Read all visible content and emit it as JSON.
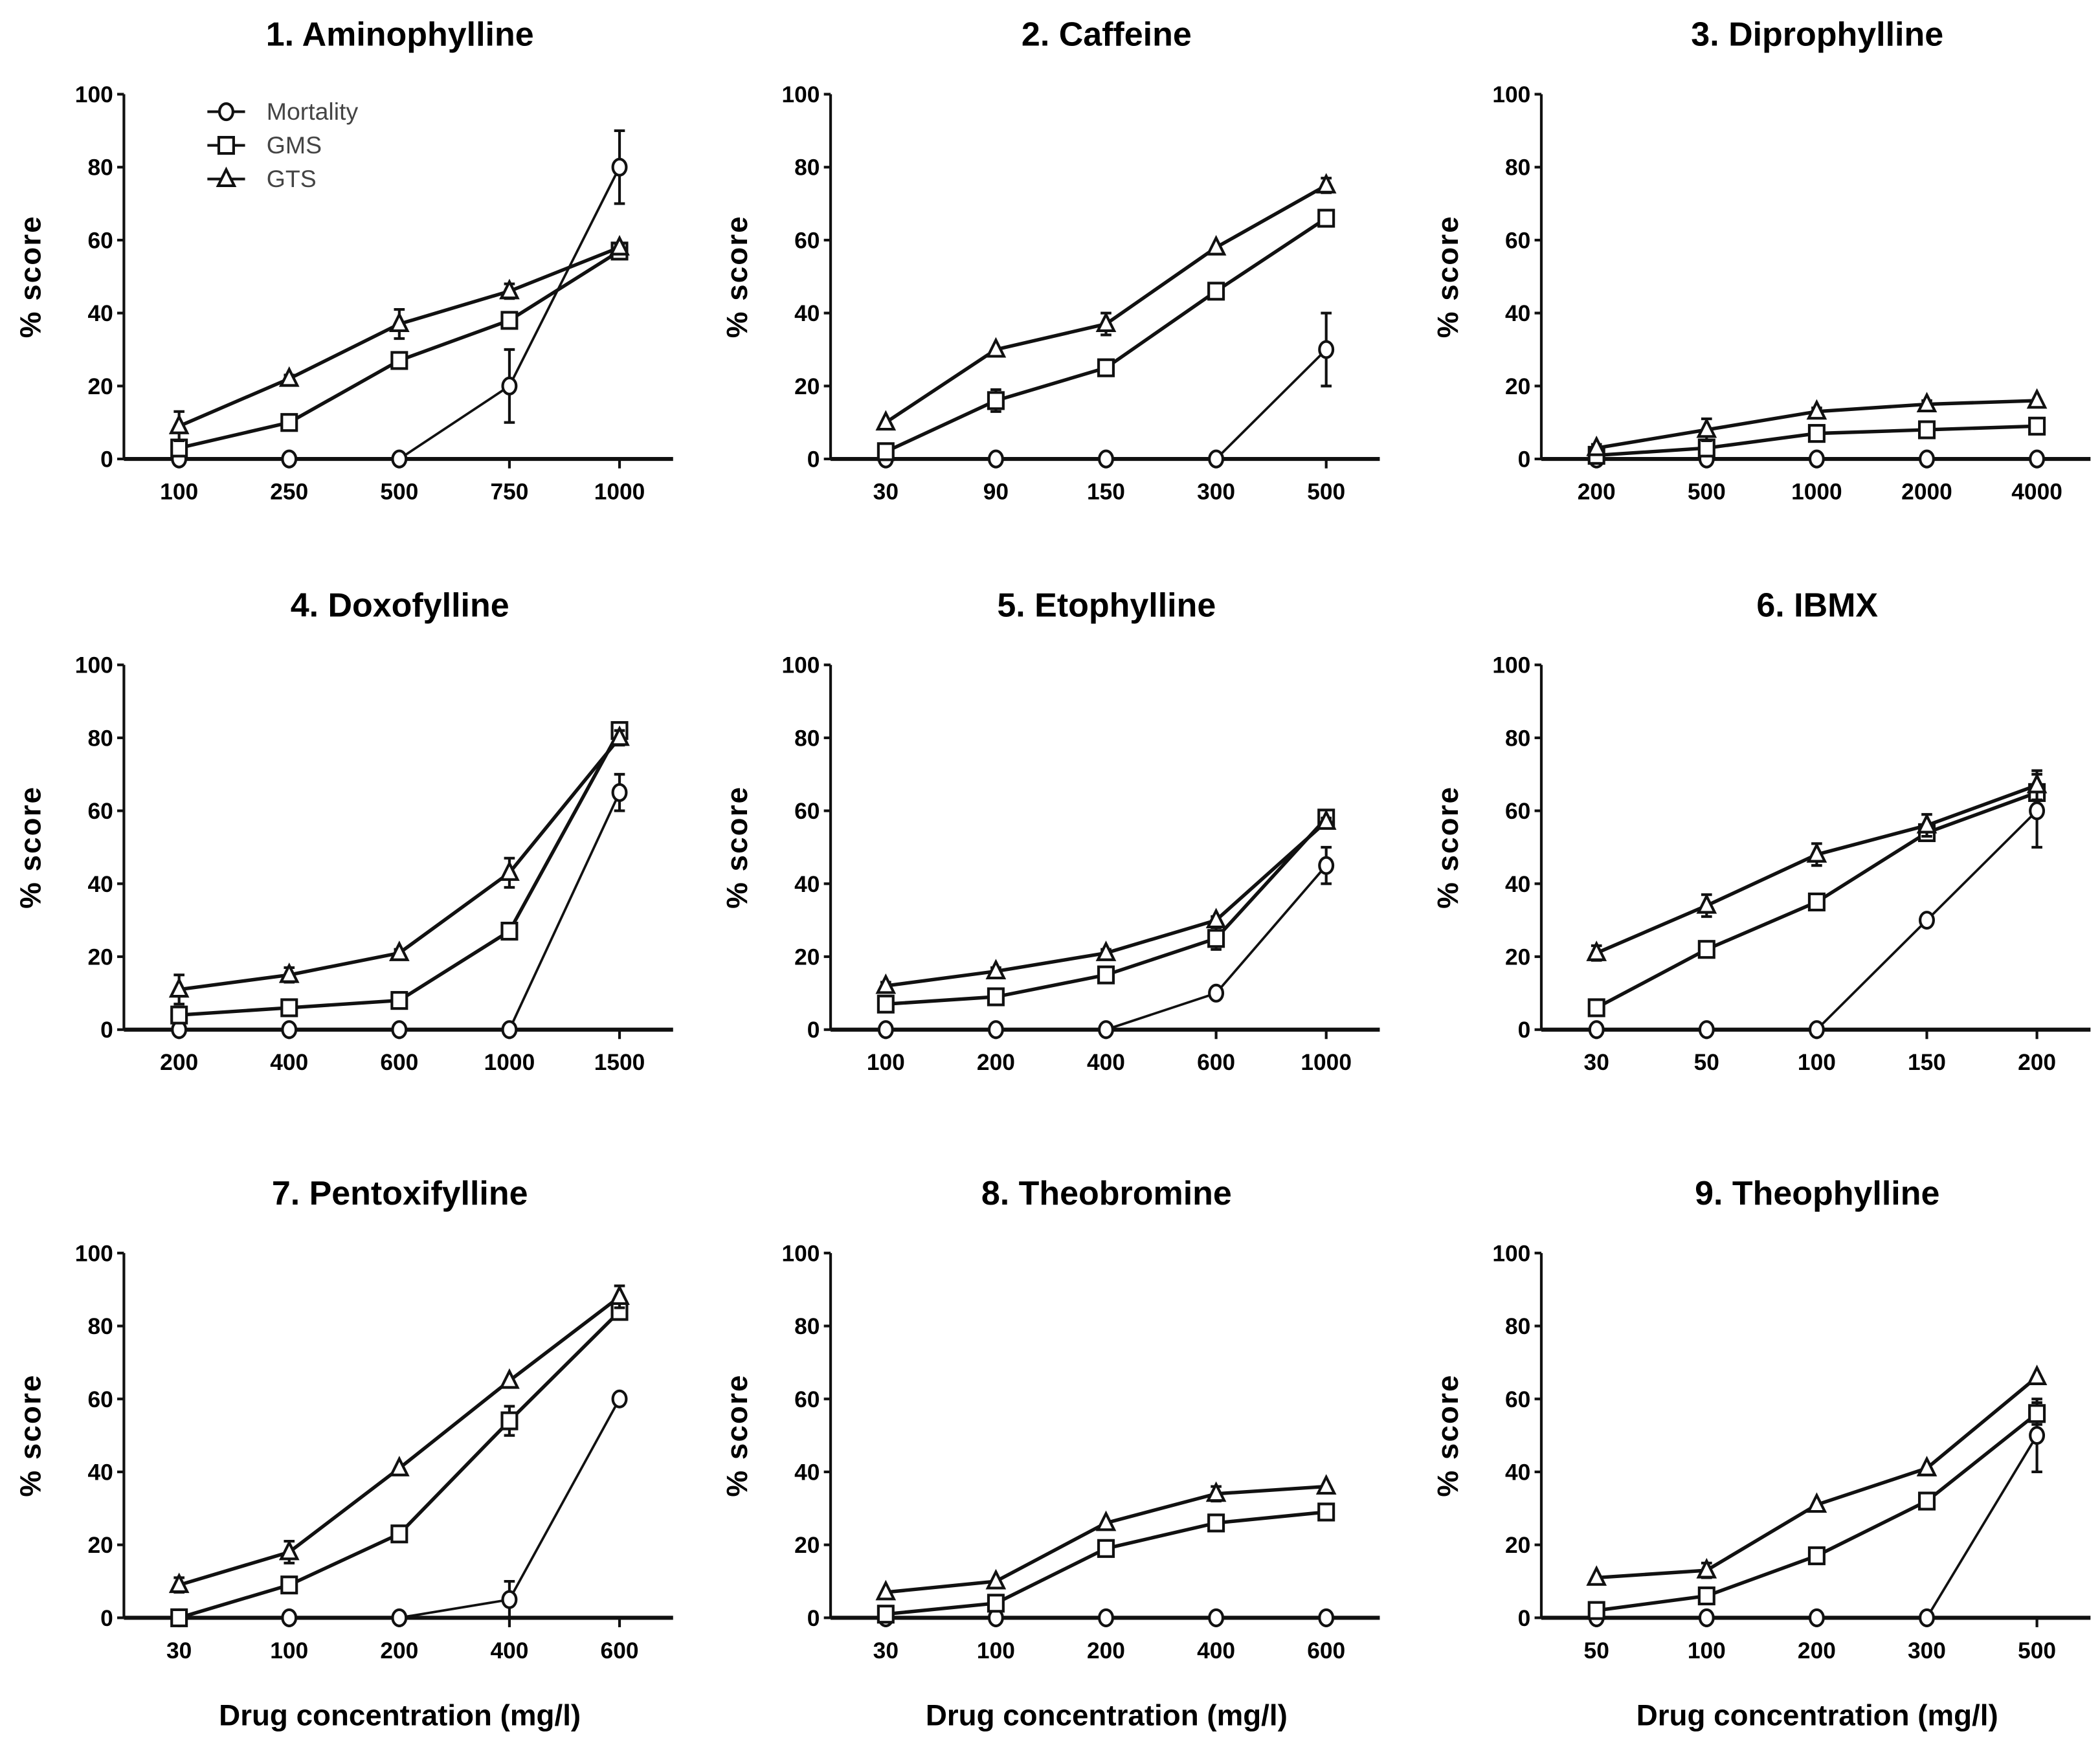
{
  "chart_data": [
    {
      "type": "line",
      "title": "1. Aminophylline",
      "categories": [
        "100",
        "250",
        "500",
        "750",
        "1000"
      ],
      "series": [
        {
          "name": "Mortality",
          "values": [
            0,
            0,
            0,
            20,
            80
          ],
          "err": [
            0,
            0,
            0,
            10,
            10
          ]
        },
        {
          "name": "GMS",
          "values": [
            3,
            10,
            27,
            38,
            57
          ],
          "err": [
            2,
            1,
            1,
            2,
            1
          ]
        },
        {
          "name": "GTS",
          "values": [
            9,
            22,
            37,
            46,
            58
          ],
          "err": [
            4,
            1,
            4,
            2,
            1
          ]
        }
      ]
    },
    {
      "type": "line",
      "title": "2. Caffeine",
      "categories": [
        "30",
        "90",
        "150",
        "300",
        "500"
      ],
      "series": [
        {
          "name": "Mortality",
          "values": [
            0,
            0,
            0,
            0,
            30
          ],
          "err": [
            0,
            0,
            0,
            0,
            10
          ]
        },
        {
          "name": "GMS",
          "values": [
            2,
            16,
            25,
            46,
            66
          ],
          "err": [
            0,
            3,
            2,
            2,
            1
          ]
        },
        {
          "name": "GTS",
          "values": [
            10,
            30,
            37,
            58,
            75
          ],
          "err": [
            0,
            0,
            3,
            0,
            2
          ]
        }
      ]
    },
    {
      "type": "line",
      "title": "3. Diprophylline",
      "categories": [
        "200",
        "500",
        "1000",
        "2000",
        "4000"
      ],
      "series": [
        {
          "name": "Mortality",
          "values": [
            0,
            0,
            0,
            0,
            0
          ],
          "err": [
            0,
            0,
            0,
            0,
            0
          ]
        },
        {
          "name": "GMS",
          "values": [
            1,
            3,
            7,
            8,
            9
          ],
          "err": [
            0,
            1,
            1,
            1,
            1
          ]
        },
        {
          "name": "GTS",
          "values": [
            3,
            8,
            13,
            15,
            16
          ],
          "err": [
            1,
            3,
            1,
            1,
            0
          ]
        }
      ]
    },
    {
      "type": "line",
      "title": "4. Doxofylline",
      "categories": [
        "200",
        "400",
        "600",
        "1000",
        "1500"
      ],
      "series": [
        {
          "name": "Mortality",
          "values": [
            0,
            0,
            0,
            0,
            65
          ],
          "err": [
            0,
            0,
            0,
            0,
            5
          ]
        },
        {
          "name": "GMS",
          "values": [
            4,
            6,
            8,
            27,
            82
          ],
          "err": [
            2,
            1,
            1,
            1,
            2
          ]
        },
        {
          "name": "GTS",
          "values": [
            11,
            15,
            21,
            43,
            80
          ],
          "err": [
            4,
            2,
            1,
            4,
            2
          ]
        }
      ]
    },
    {
      "type": "line",
      "title": "5. Etophylline",
      "categories": [
        "100",
        "200",
        "400",
        "600",
        "1000"
      ],
      "series": [
        {
          "name": "Mortality",
          "values": [
            0,
            0,
            0,
            10,
            45
          ],
          "err": [
            0,
            0,
            0,
            0,
            5
          ]
        },
        {
          "name": "GMS",
          "values": [
            7,
            9,
            15,
            25,
            58
          ],
          "err": [
            1,
            1,
            2,
            3,
            1
          ]
        },
        {
          "name": "GTS",
          "values": [
            12,
            16,
            21,
            30,
            57
          ],
          "err": [
            1,
            1,
            1,
            1,
            1
          ]
        }
      ]
    },
    {
      "type": "line",
      "title": "6. IBMX",
      "categories": [
        "30",
        "50",
        "100",
        "150",
        "200"
      ],
      "series": [
        {
          "name": "Mortality",
          "values": [
            0,
            0,
            0,
            30,
            60
          ],
          "err": [
            0,
            0,
            0,
            0,
            10
          ]
        },
        {
          "name": "GMS",
          "values": [
            6,
            22,
            35,
            54,
            65
          ],
          "err": [
            1,
            1,
            1,
            2,
            2
          ]
        },
        {
          "name": "GTS",
          "values": [
            21,
            34,
            48,
            56,
            67
          ],
          "err": [
            2,
            3,
            3,
            3,
            4
          ]
        }
      ]
    },
    {
      "type": "line",
      "title": "7. Pentoxifylline",
      "categories": [
        "30",
        "100",
        "200",
        "400",
        "600"
      ],
      "series": [
        {
          "name": "Mortality",
          "values": [
            0,
            0,
            0,
            5,
            60
          ],
          "err": [
            0,
            0,
            0,
            5,
            0
          ]
        },
        {
          "name": "GMS",
          "values": [
            0,
            9,
            23,
            54,
            84
          ],
          "err": [
            1,
            1,
            1,
            4,
            1
          ]
        },
        {
          "name": "GTS",
          "values": [
            9,
            18,
            41,
            65,
            88
          ],
          "err": [
            2,
            3,
            0,
            0,
            3
          ]
        }
      ]
    },
    {
      "type": "line",
      "title": "8. Theobromine",
      "categories": [
        "30",
        "100",
        "200",
        "400",
        "600"
      ],
      "series": [
        {
          "name": "Mortality",
          "values": [
            0,
            0,
            0,
            0,
            0
          ],
          "err": [
            0,
            0,
            0,
            0,
            0
          ]
        },
        {
          "name": "GMS",
          "values": [
            1,
            4,
            19,
            26,
            29
          ],
          "err": [
            0,
            1,
            1,
            1,
            1
          ]
        },
        {
          "name": "GTS",
          "values": [
            7,
            10,
            26,
            34,
            36
          ],
          "err": [
            0,
            0,
            0,
            2,
            0
          ]
        }
      ]
    },
    {
      "type": "line",
      "title": "9. Theophylline",
      "categories": [
        "50",
        "100",
        "200",
        "300",
        "500"
      ],
      "series": [
        {
          "name": "Mortality",
          "values": [
            0,
            0,
            0,
            0,
            50
          ],
          "err": [
            0,
            0,
            0,
            0,
            10
          ]
        },
        {
          "name": "GMS",
          "values": [
            2,
            6,
            17,
            32,
            56
          ],
          "err": [
            0,
            1,
            1,
            1,
            3
          ]
        },
        {
          "name": "GTS",
          "values": [
            11,
            13,
            31,
            41,
            66
          ],
          "err": [
            0,
            2,
            0,
            0,
            0
          ]
        }
      ]
    }
  ],
  "common": {
    "ylabel": "% score",
    "xlabel": "Drug concentration (mg/l)",
    "ylim": [
      0,
      100
    ],
    "yticks": [
      "0",
      "20",
      "40",
      "60",
      "80",
      "100"
    ],
    "legend": [
      "Mortality",
      "GMS",
      "GTS"
    ],
    "legend_position": "top-left of panel 1",
    "color": "#111111"
  }
}
